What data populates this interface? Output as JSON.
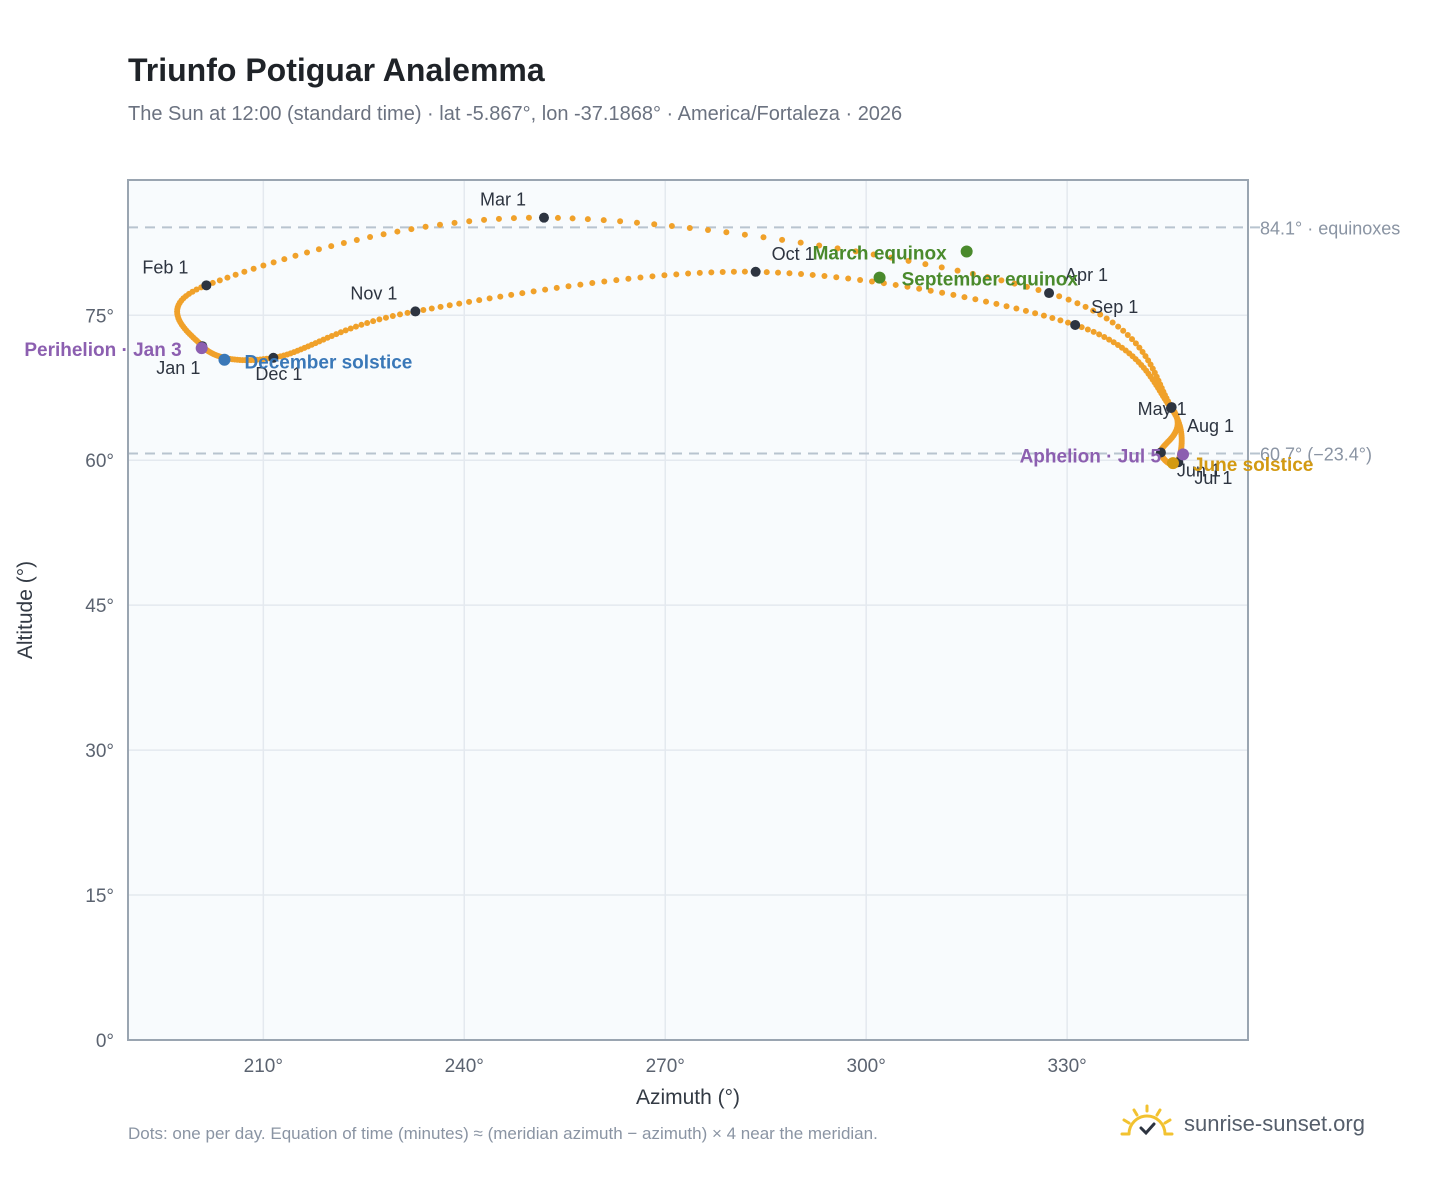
{
  "header": {
    "title": "Triunfo Potiguar Analemma",
    "subtitle": "The Sun at 12:00 (standard time) · lat -5.867°, lon -37.1868° · America/Fortaleza · 2026"
  },
  "footer": {
    "note": "Dots: one per day. Equation of time (minutes) ≈ (meridian azimuth − azimuth) × 4 near the meridian.",
    "brand": "sunrise-sunset.org"
  },
  "colors": {
    "path": "#f0a12a",
    "month_marker": "#2d3440",
    "equinox": "#4a8a2c",
    "december_solstice": "#3a78b8",
    "june_solstice": "#d39a12",
    "apsis": "#8c5fb0",
    "reference_line": "#b8c4cf"
  },
  "chart_data": {
    "type": "scatter",
    "xlabel": "Azimuth (°)",
    "ylabel": "Altitude (°)",
    "xlim": [
      189.8,
      357.0
    ],
    "ylim": [
      0,
      89
    ],
    "xticks": [
      210,
      240,
      270,
      300,
      330
    ],
    "yticks": [
      0,
      15,
      30,
      45,
      60,
      75
    ],
    "xtick_labels": [
      "210°",
      "240°",
      "270°",
      "300°",
      "330°"
    ],
    "ytick_labels": [
      "0°",
      "15°",
      "30°",
      "45°",
      "60°",
      "75°"
    ],
    "grid": true,
    "reference_lines": [
      {
        "y": 84.1,
        "label": "84.1° · equinoxes"
      },
      {
        "y": 60.7,
        "label": "60.7° (−23.4°)"
      }
    ],
    "month_markers": [
      {
        "label": "Jan 1",
        "azimuth": 200.9,
        "altitude": 71.8
      },
      {
        "label": "Feb 1",
        "azimuth": 201.5,
        "altitude": 78.1
      },
      {
        "label": "Mar 1",
        "azimuth": 251.9,
        "altitude": 85.1
      },
      {
        "label": "Apr 1",
        "azimuth": 327.3,
        "altitude": 77.3
      },
      {
        "label": "May 1",
        "azimuth": 345.6,
        "altitude": 65.5
      },
      {
        "label": "Jun 1",
        "azimuth": 344.0,
        "altitude": 60.8
      },
      {
        "label": "Jul 1",
        "azimuth": 346.6,
        "altitude": 59.8
      },
      {
        "label": "Aug 1",
        "azimuth": 345.5,
        "altitude": 65.4
      },
      {
        "label": "Sep 1",
        "azimuth": 331.2,
        "altitude": 74.0
      },
      {
        "label": "Oct 1",
        "azimuth": 283.5,
        "altitude": 79.5
      },
      {
        "label": "Nov 1",
        "azimuth": 232.7,
        "altitude": 75.4
      },
      {
        "label": "Dec 1",
        "azimuth": 211.5,
        "altitude": 70.6
      }
    ],
    "events": [
      {
        "label": "March equinox",
        "azimuth": 315.0,
        "altitude": 81.6,
        "kind": "equinox"
      },
      {
        "label": "September equinox",
        "azimuth": 302.0,
        "altitude": 78.9,
        "kind": "equinox"
      },
      {
        "label": "December solstice",
        "azimuth": 204.2,
        "altitude": 70.4,
        "kind": "december_solstice"
      },
      {
        "label": "June solstice",
        "azimuth": 345.8,
        "altitude": 59.7,
        "kind": "june_solstice"
      },
      {
        "label": "Perihelion · Jan 3",
        "azimuth": 200.8,
        "altitude": 71.6,
        "kind": "apsis"
      },
      {
        "label": "Aphelion · Jul 5",
        "azimuth": 347.3,
        "altitude": 60.6,
        "kind": "apsis"
      }
    ],
    "path_days": 365
  }
}
